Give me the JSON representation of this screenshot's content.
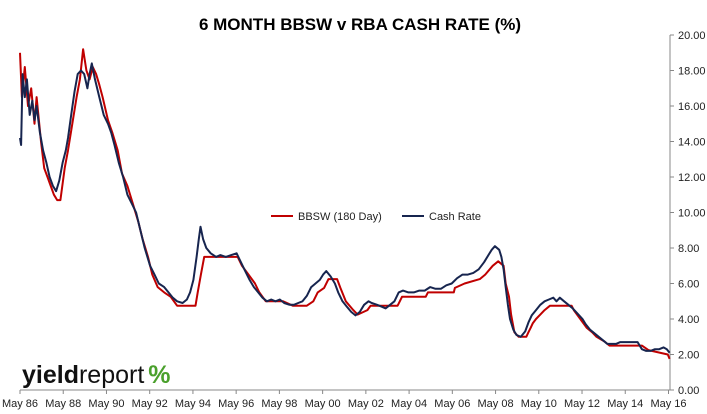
{
  "chart_data": {
    "type": "line",
    "title": "6 MONTH BBSW v RBA CASH RATE (%)",
    "xlabel": "",
    "ylabel": "",
    "x_range": [
      1986.33,
      2016.4
    ],
    "ylim": [
      0,
      20
    ],
    "y_ticks": [
      "0.00",
      "2.00",
      "4.00",
      "6.00",
      "8.00",
      "10.00",
      "12.00",
      "14.00",
      "16.00",
      "18.00",
      "20.00"
    ],
    "x_ticks": [
      {
        "label": "May 86",
        "x": 1986.33
      },
      {
        "label": "May 88",
        "x": 1988.33
      },
      {
        "label": "May 90",
        "x": 1990.33
      },
      {
        "label": "May 92",
        "x": 1992.33
      },
      {
        "label": "May 94",
        "x": 1994.33
      },
      {
        "label": "May 96",
        "x": 1996.33
      },
      {
        "label": "May 98",
        "x": 1998.33
      },
      {
        "label": "May 00",
        "x": 2000.33
      },
      {
        "label": "May 02",
        "x": 2002.33
      },
      {
        "label": "May 04",
        "x": 2004.33
      },
      {
        "label": "May 06",
        "x": 2006.33
      },
      {
        "label": "May 08",
        "x": 2008.33
      },
      {
        "label": "May 10",
        "x": 2010.33
      },
      {
        "label": "May 12",
        "x": 2012.33
      },
      {
        "label": "May 14",
        "x": 2014.33
      },
      {
        "label": "May 16",
        "x": 2016.33
      }
    ],
    "y_axis_side": "right",
    "grid": false,
    "legend": "center",
    "series": [
      {
        "name": "BBSW (180 Day)",
        "color": "#c00000",
        "points": [
          [
            1986.33,
            19.0
          ],
          [
            1986.42,
            16.5
          ],
          [
            1986.55,
            18.2
          ],
          [
            1986.7,
            16.0
          ],
          [
            1986.85,
            17.0
          ],
          [
            1987.0,
            15.0
          ],
          [
            1987.1,
            16.5
          ],
          [
            1987.3,
            14.0
          ],
          [
            1987.45,
            12.5
          ],
          [
            1987.6,
            12.0
          ],
          [
            1987.75,
            11.5
          ],
          [
            1987.9,
            11.0
          ],
          [
            1988.05,
            10.7
          ],
          [
            1988.2,
            10.7
          ],
          [
            1988.4,
            12.5
          ],
          [
            1988.55,
            13.5
          ],
          [
            1988.75,
            15.0
          ],
          [
            1988.95,
            16.5
          ],
          [
            1989.1,
            17.5
          ],
          [
            1989.25,
            19.2
          ],
          [
            1989.4,
            18.0
          ],
          [
            1989.55,
            17.5
          ],
          [
            1989.7,
            18.2
          ],
          [
            1989.85,
            17.8
          ],
          [
            1990.0,
            17.2
          ],
          [
            1990.15,
            16.5
          ],
          [
            1990.4,
            15.2
          ],
          [
            1990.6,
            14.5
          ],
          [
            1990.85,
            13.5
          ],
          [
            1991.05,
            12.2
          ],
          [
            1991.3,
            11.5
          ],
          [
            1991.55,
            10.5
          ],
          [
            1991.8,
            9.5
          ],
          [
            1992.0,
            8.5
          ],
          [
            1992.25,
            7.5
          ],
          [
            1992.45,
            6.5
          ],
          [
            1992.7,
            5.8
          ],
          [
            1993.0,
            5.5
          ],
          [
            1993.3,
            5.25
          ],
          [
            1993.6,
            4.75
          ],
          [
            1994.0,
            4.75
          ],
          [
            1994.45,
            4.75
          ],
          [
            1994.55,
            5.5
          ],
          [
            1994.7,
            6.5
          ],
          [
            1994.85,
            7.5
          ],
          [
            1995.5,
            7.5
          ],
          [
            1996.1,
            7.5
          ],
          [
            1996.4,
            7.5
          ],
          [
            1996.6,
            7.0
          ],
          [
            1996.9,
            6.5
          ],
          [
            1997.2,
            6.0
          ],
          [
            1997.4,
            5.5
          ],
          [
            1997.7,
            5.0
          ],
          [
            1998.1,
            5.0
          ],
          [
            1998.5,
            5.0
          ],
          [
            1998.95,
            4.75
          ],
          [
            1999.6,
            4.75
          ],
          [
            1999.9,
            5.0
          ],
          [
            2000.1,
            5.5
          ],
          [
            2000.4,
            5.75
          ],
          [
            2000.6,
            6.25
          ],
          [
            2001.0,
            6.25
          ],
          [
            2001.15,
            5.75
          ],
          [
            2001.4,
            5.0
          ],
          [
            2001.75,
            4.5
          ],
          [
            2001.95,
            4.25
          ],
          [
            2002.4,
            4.5
          ],
          [
            2002.55,
            4.75
          ],
          [
            2003.0,
            4.75
          ],
          [
            2003.8,
            4.75
          ],
          [
            2003.9,
            5.0
          ],
          [
            2004.0,
            5.25
          ],
          [
            2005.1,
            5.25
          ],
          [
            2005.2,
            5.5
          ],
          [
            2006.4,
            5.5
          ],
          [
            2006.45,
            5.75
          ],
          [
            2006.9,
            6.0
          ],
          [
            2007.6,
            6.25
          ],
          [
            2007.85,
            6.5
          ],
          [
            2008.2,
            7.0
          ],
          [
            2008.45,
            7.25
          ],
          [
            2008.7,
            7.0
          ],
          [
            2008.8,
            6.0
          ],
          [
            2008.95,
            5.25
          ],
          [
            2009.05,
            4.25
          ],
          [
            2009.2,
            3.25
          ],
          [
            2009.4,
            3.0
          ],
          [
            2009.75,
            3.0
          ],
          [
            2009.85,
            3.25
          ],
          [
            2009.95,
            3.5
          ],
          [
            2010.05,
            3.75
          ],
          [
            2010.2,
            4.0
          ],
          [
            2010.4,
            4.25
          ],
          [
            2010.6,
            4.5
          ],
          [
            2010.85,
            4.75
          ],
          [
            2011.85,
            4.75
          ],
          [
            2011.95,
            4.5
          ],
          [
            2012.1,
            4.25
          ],
          [
            2012.4,
            3.75
          ],
          [
            2012.55,
            3.5
          ],
          [
            2012.8,
            3.25
          ],
          [
            2013.0,
            3.0
          ],
          [
            2013.35,
            2.75
          ],
          [
            2013.6,
            2.5
          ],
          [
            2015.1,
            2.5
          ],
          [
            2015.4,
            2.25
          ],
          [
            2016.3,
            2.0
          ],
          [
            2016.38,
            1.75
          ]
        ]
      },
      {
        "name": "Cash Rate",
        "color": "#17254f",
        "points": [
          [
            1986.33,
            14.2
          ],
          [
            1986.38,
            13.8
          ],
          [
            1986.45,
            17.8
          ],
          [
            1986.55,
            16.5
          ],
          [
            1986.65,
            17.5
          ],
          [
            1986.78,
            15.5
          ],
          [
            1986.9,
            16.3
          ],
          [
            1987.0,
            15.2
          ],
          [
            1987.1,
            16.0
          ],
          [
            1987.25,
            14.5
          ],
          [
            1987.4,
            13.5
          ],
          [
            1987.55,
            12.8
          ],
          [
            1987.7,
            12.0
          ],
          [
            1987.85,
            11.5
          ],
          [
            1988.0,
            11.2
          ],
          [
            1988.15,
            11.8
          ],
          [
            1988.3,
            12.8
          ],
          [
            1988.45,
            13.5
          ],
          [
            1988.55,
            14.2
          ],
          [
            1988.7,
            15.5
          ],
          [
            1988.85,
            16.8
          ],
          [
            1989.0,
            17.8
          ],
          [
            1989.15,
            18.0
          ],
          [
            1989.3,
            17.8
          ],
          [
            1989.45,
            17.0
          ],
          [
            1989.55,
            17.8
          ],
          [
            1989.65,
            18.4
          ],
          [
            1989.8,
            17.5
          ],
          [
            1990.0,
            16.5
          ],
          [
            1990.2,
            15.5
          ],
          [
            1990.4,
            15.0
          ],
          [
            1990.55,
            14.5
          ],
          [
            1990.7,
            13.8
          ],
          [
            1990.9,
            12.8
          ],
          [
            1991.1,
            12.0
          ],
          [
            1991.3,
            11.0
          ],
          [
            1991.5,
            10.5
          ],
          [
            1991.7,
            10.0
          ],
          [
            1991.9,
            9.0
          ],
          [
            1992.1,
            8.0
          ],
          [
            1992.35,
            7.0
          ],
          [
            1992.55,
            6.5
          ],
          [
            1992.75,
            6.0
          ],
          [
            1993.0,
            5.8
          ],
          [
            1993.2,
            5.5
          ],
          [
            1993.4,
            5.2
          ],
          [
            1993.6,
            5.0
          ],
          [
            1993.85,
            4.9
          ],
          [
            1994.05,
            5.1
          ],
          [
            1994.2,
            5.5
          ],
          [
            1994.35,
            6.2
          ],
          [
            1994.5,
            7.5
          ],
          [
            1994.6,
            8.5
          ],
          [
            1994.68,
            9.2
          ],
          [
            1994.8,
            8.5
          ],
          [
            1994.95,
            8.0
          ],
          [
            1995.15,
            7.7
          ],
          [
            1995.4,
            7.5
          ],
          [
            1995.6,
            7.6
          ],
          [
            1995.85,
            7.5
          ],
          [
            1996.1,
            7.6
          ],
          [
            1996.35,
            7.7
          ],
          [
            1996.55,
            7.2
          ],
          [
            1996.75,
            6.7
          ],
          [
            1996.95,
            6.2
          ],
          [
            1997.15,
            5.8
          ],
          [
            1997.35,
            5.5
          ],
          [
            1997.55,
            5.2
          ],
          [
            1997.75,
            5.0
          ],
          [
            1997.95,
            5.1
          ],
          [
            1998.15,
            5.0
          ],
          [
            1998.35,
            5.1
          ],
          [
            1998.55,
            4.9
          ],
          [
            1998.8,
            4.8
          ],
          [
            1999.0,
            4.8
          ],
          [
            1999.2,
            4.9
          ],
          [
            1999.4,
            5.0
          ],
          [
            1999.6,
            5.3
          ],
          [
            1999.8,
            5.8
          ],
          [
            2000.0,
            6.0
          ],
          [
            2000.2,
            6.2
          ],
          [
            2000.35,
            6.5
          ],
          [
            2000.5,
            6.7
          ],
          [
            2000.7,
            6.4
          ],
          [
            2000.9,
            6.0
          ],
          [
            2001.05,
            5.5
          ],
          [
            2001.25,
            5.0
          ],
          [
            2001.45,
            4.7
          ],
          [
            2001.65,
            4.4
          ],
          [
            2001.85,
            4.2
          ],
          [
            2002.05,
            4.4
          ],
          [
            2002.25,
            4.8
          ],
          [
            2002.45,
            5.0
          ],
          [
            2002.6,
            4.9
          ],
          [
            2002.85,
            4.8
          ],
          [
            2003.05,
            4.7
          ],
          [
            2003.25,
            4.6
          ],
          [
            2003.45,
            4.8
          ],
          [
            2003.65,
            5.0
          ],
          [
            2003.85,
            5.5
          ],
          [
            2004.05,
            5.6
          ],
          [
            2004.3,
            5.5
          ],
          [
            2004.55,
            5.5
          ],
          [
            2004.8,
            5.6
          ],
          [
            2005.05,
            5.6
          ],
          [
            2005.3,
            5.8
          ],
          [
            2005.55,
            5.7
          ],
          [
            2005.8,
            5.7
          ],
          [
            2006.05,
            5.9
          ],
          [
            2006.3,
            6.0
          ],
          [
            2006.55,
            6.3
          ],
          [
            2006.8,
            6.5
          ],
          [
            2007.05,
            6.5
          ],
          [
            2007.3,
            6.6
          ],
          [
            2007.55,
            6.8
          ],
          [
            2007.8,
            7.2
          ],
          [
            2008.0,
            7.6
          ],
          [
            2008.15,
            7.9
          ],
          [
            2008.3,
            8.1
          ],
          [
            2008.5,
            7.9
          ],
          [
            2008.6,
            7.5
          ],
          [
            2008.7,
            6.8
          ],
          [
            2008.8,
            5.8
          ],
          [
            2008.9,
            4.8
          ],
          [
            2009.0,
            4.0
          ],
          [
            2009.15,
            3.4
          ],
          [
            2009.3,
            3.1
          ],
          [
            2009.5,
            3.0
          ],
          [
            2009.7,
            3.3
          ],
          [
            2009.85,
            3.8
          ],
          [
            2010.0,
            4.2
          ],
          [
            2010.2,
            4.5
          ],
          [
            2010.4,
            4.8
          ],
          [
            2010.6,
            5.0
          ],
          [
            2010.8,
            5.1
          ],
          [
            2011.0,
            5.2
          ],
          [
            2011.15,
            5.0
          ],
          [
            2011.3,
            5.2
          ],
          [
            2011.5,
            5.0
          ],
          [
            2011.7,
            4.8
          ],
          [
            2011.9,
            4.6
          ],
          [
            2012.05,
            4.4
          ],
          [
            2012.2,
            4.2
          ],
          [
            2012.35,
            4.0
          ],
          [
            2012.5,
            3.7
          ],
          [
            2012.7,
            3.4
          ],
          [
            2012.9,
            3.2
          ],
          [
            2013.1,
            3.0
          ],
          [
            2013.3,
            2.8
          ],
          [
            2013.5,
            2.6
          ],
          [
            2013.7,
            2.6
          ],
          [
            2013.9,
            2.6
          ],
          [
            2014.1,
            2.7
          ],
          [
            2014.3,
            2.7
          ],
          [
            2014.5,
            2.7
          ],
          [
            2014.7,
            2.7
          ],
          [
            2014.9,
            2.7
          ],
          [
            2015.1,
            2.3
          ],
          [
            2015.3,
            2.2
          ],
          [
            2015.5,
            2.2
          ],
          [
            2015.7,
            2.3
          ],
          [
            2015.9,
            2.3
          ],
          [
            2016.1,
            2.4
          ],
          [
            2016.25,
            2.3
          ],
          [
            2016.38,
            2.1
          ]
        ]
      }
    ]
  },
  "logo": {
    "part1": "yield",
    "part2": "report",
    "symbol": "%"
  }
}
